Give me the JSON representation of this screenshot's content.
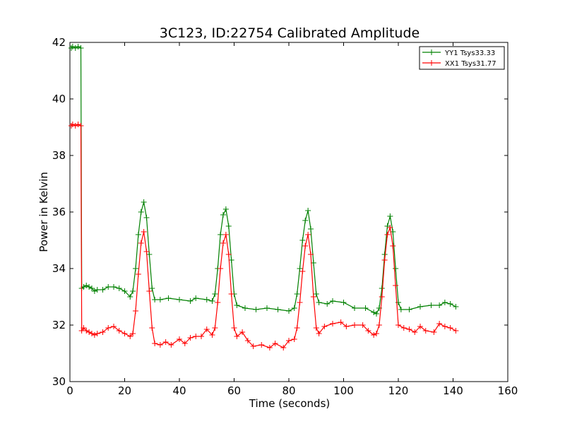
{
  "chart_data": {
    "type": "line",
    "title": "3C123, ID:22754 Calibrated Amplitude",
    "xlabel": "Time (seconds)",
    "ylabel": "Power in Kelvin",
    "xlim": [
      0,
      160
    ],
    "ylim": [
      30,
      42
    ],
    "xticks": [
      "0",
      "20",
      "40",
      "60",
      "80",
      "100",
      "120",
      "140",
      "160"
    ],
    "yticks": [
      "30",
      "32",
      "34",
      "36",
      "38",
      "40",
      "42"
    ],
    "grid": false,
    "legend_position": "top-right",
    "marker": "+",
    "series": [
      {
        "name": "YY1 Tsys33.33",
        "color": "#008000",
        "points": [
          [
            0.5,
            41.8
          ],
          [
            1,
            41.85
          ],
          [
            2,
            41.8
          ],
          [
            3,
            41.85
          ],
          [
            4,
            41.8
          ],
          [
            4.3,
            33.3
          ],
          [
            5,
            33.35
          ],
          [
            6,
            33.4
          ],
          [
            7,
            33.35
          ],
          [
            8,
            33.3
          ],
          [
            9,
            33.2
          ],
          [
            10,
            33.25
          ],
          [
            12,
            33.25
          ],
          [
            14,
            33.35
          ],
          [
            16,
            33.35
          ],
          [
            18,
            33.3
          ],
          [
            20,
            33.2
          ],
          [
            22,
            33.0
          ],
          [
            23,
            33.2
          ],
          [
            24,
            34.0
          ],
          [
            25,
            35.2
          ],
          [
            26,
            36.0
          ],
          [
            27,
            36.35
          ],
          [
            28,
            35.8
          ],
          [
            29,
            34.5
          ],
          [
            30,
            33.3
          ],
          [
            31,
            32.9
          ],
          [
            33,
            32.9
          ],
          [
            36,
            32.95
          ],
          [
            40,
            32.9
          ],
          [
            44,
            32.85
          ],
          [
            46,
            32.95
          ],
          [
            50,
            32.9
          ],
          [
            52,
            32.85
          ],
          [
            53,
            33.1
          ],
          [
            54,
            34.0
          ],
          [
            55,
            35.2
          ],
          [
            56,
            35.9
          ],
          [
            57,
            36.1
          ],
          [
            58,
            35.5
          ],
          [
            59,
            34.3
          ],
          [
            60,
            33.1
          ],
          [
            61,
            32.7
          ],
          [
            64,
            32.6
          ],
          [
            68,
            32.55
          ],
          [
            72,
            32.6
          ],
          [
            76,
            32.55
          ],
          [
            80,
            32.5
          ],
          [
            82,
            32.6
          ],
          [
            83,
            33.1
          ],
          [
            84,
            34.0
          ],
          [
            85,
            35.0
          ],
          [
            86,
            35.7
          ],
          [
            87,
            36.05
          ],
          [
            88,
            35.4
          ],
          [
            89,
            34.2
          ],
          [
            90,
            33.1
          ],
          [
            91,
            32.8
          ],
          [
            94,
            32.75
          ],
          [
            96,
            32.85
          ],
          [
            100,
            32.8
          ],
          [
            104,
            32.6
          ],
          [
            108,
            32.6
          ],
          [
            111,
            32.45
          ],
          [
            112,
            32.4
          ],
          [
            113,
            32.6
          ],
          [
            114,
            33.3
          ],
          [
            115,
            34.5
          ],
          [
            116,
            35.5
          ],
          [
            117,
            35.85
          ],
          [
            118,
            35.3
          ],
          [
            119,
            34.0
          ],
          [
            120,
            32.8
          ],
          [
            121,
            32.55
          ],
          [
            124,
            32.55
          ],
          [
            128,
            32.65
          ],
          [
            132,
            32.7
          ],
          [
            135,
            32.7
          ],
          [
            137,
            32.8
          ],
          [
            139,
            32.75
          ],
          [
            141,
            32.65
          ]
        ]
      },
      {
        "name": "XX1 Tsys31.77",
        "color": "#ff0000",
        "points": [
          [
            0.5,
            39.05
          ],
          [
            1,
            39.1
          ],
          [
            2,
            39.05
          ],
          [
            3,
            39.1
          ],
          [
            4,
            39.05
          ],
          [
            4.3,
            31.8
          ],
          [
            5,
            31.9
          ],
          [
            6,
            31.8
          ],
          [
            7,
            31.75
          ],
          [
            8,
            31.7
          ],
          [
            9,
            31.65
          ],
          [
            10,
            31.7
          ],
          [
            12,
            31.75
          ],
          [
            14,
            31.9
          ],
          [
            16,
            31.95
          ],
          [
            18,
            31.8
          ],
          [
            20,
            31.7
          ],
          [
            22,
            31.6
          ],
          [
            23,
            31.7
          ],
          [
            24,
            32.5
          ],
          [
            25,
            33.8
          ],
          [
            26,
            34.9
          ],
          [
            27,
            35.3
          ],
          [
            28,
            34.6
          ],
          [
            29,
            33.2
          ],
          [
            30,
            31.9
          ],
          [
            31,
            31.35
          ],
          [
            33,
            31.3
          ],
          [
            35,
            31.4
          ],
          [
            37,
            31.3
          ],
          [
            40,
            31.5
          ],
          [
            42,
            31.35
          ],
          [
            44,
            31.55
          ],
          [
            46,
            31.6
          ],
          [
            48,
            31.6
          ],
          [
            50,
            31.85
          ],
          [
            52,
            31.65
          ],
          [
            53,
            31.9
          ],
          [
            54,
            32.8
          ],
          [
            55,
            34.0
          ],
          [
            56,
            34.9
          ],
          [
            57,
            35.2
          ],
          [
            58,
            34.5
          ],
          [
            59,
            33.1
          ],
          [
            60,
            31.9
          ],
          [
            61,
            31.6
          ],
          [
            63,
            31.75
          ],
          [
            65,
            31.45
          ],
          [
            67,
            31.25
          ],
          [
            70,
            31.3
          ],
          [
            73,
            31.2
          ],
          [
            75,
            31.35
          ],
          [
            78,
            31.2
          ],
          [
            80,
            31.45
          ],
          [
            82,
            31.5
          ],
          [
            83,
            31.9
          ],
          [
            84,
            32.8
          ],
          [
            85,
            33.9
          ],
          [
            86,
            34.8
          ],
          [
            87,
            35.2
          ],
          [
            88,
            34.5
          ],
          [
            89,
            33.0
          ],
          [
            90,
            31.9
          ],
          [
            91,
            31.7
          ],
          [
            93,
            31.95
          ],
          [
            96,
            32.05
          ],
          [
            99,
            32.1
          ],
          [
            101,
            31.95
          ],
          [
            104,
            32.0
          ],
          [
            107,
            32.0
          ],
          [
            109,
            31.8
          ],
          [
            111,
            31.65
          ],
          [
            112,
            31.7
          ],
          [
            113,
            32.0
          ],
          [
            114,
            33.0
          ],
          [
            115,
            34.3
          ],
          [
            116,
            35.2
          ],
          [
            117,
            35.45
          ],
          [
            118,
            34.8
          ],
          [
            119,
            33.4
          ],
          [
            120,
            32.0
          ],
          [
            122,
            31.9
          ],
          [
            124,
            31.85
          ],
          [
            126,
            31.75
          ],
          [
            128,
            31.95
          ],
          [
            130,
            31.8
          ],
          [
            133,
            31.75
          ],
          [
            135,
            32.05
          ],
          [
            137,
            31.95
          ],
          [
            139,
            31.9
          ],
          [
            141,
            31.8
          ]
        ]
      }
    ]
  }
}
